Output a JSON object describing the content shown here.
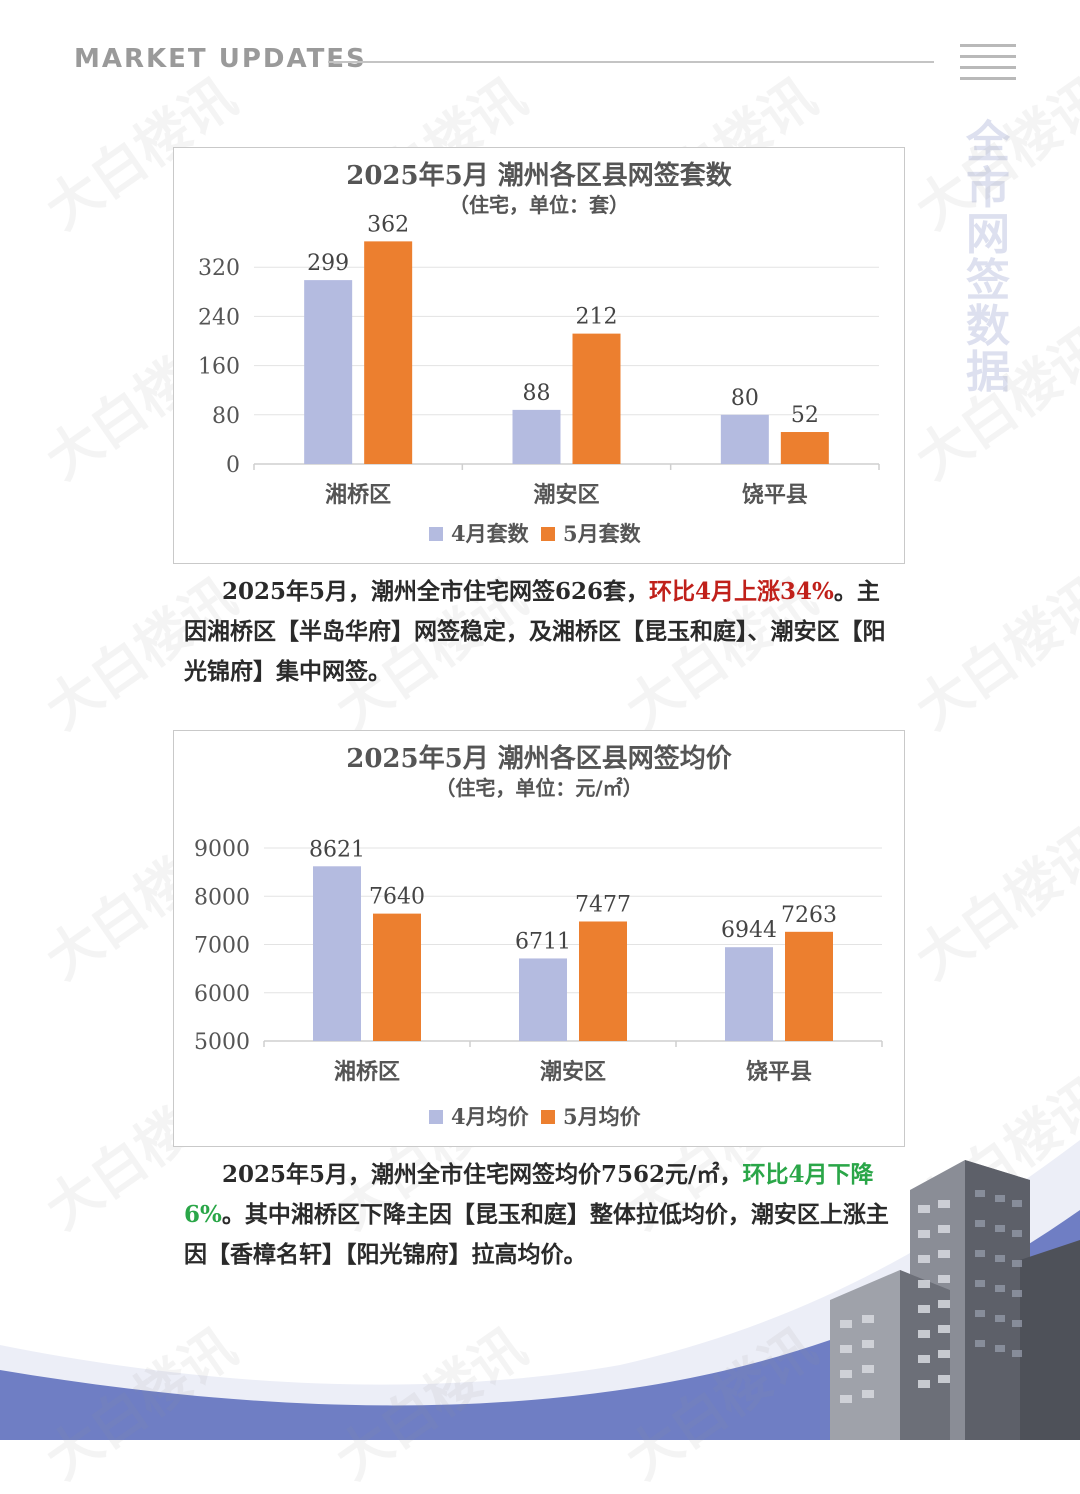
{
  "header": {
    "title": "MARKET UPDATES",
    "side_title": "全市网签数据"
  },
  "watermark": "大白楼讯",
  "colors": {
    "april": "#b4bbe0",
    "may": "#ec7f2f",
    "up": "#c0201a",
    "down": "#2aa648",
    "wave": "#6f7ec4"
  },
  "icons": {
    "menu": "hamburger-menu-icon"
  },
  "chart_data": [
    {
      "type": "bar",
      "title": "2025年5月 潮州各区县网签套数",
      "subtitle": "（住宅，单位：套）",
      "categories": [
        "湘桥区",
        "潮安区",
        "饶平县"
      ],
      "series": [
        {
          "name": "4月套数",
          "values": [
            299,
            88,
            80
          ]
        },
        {
          "name": "5月套数",
          "values": [
            362,
            212,
            52
          ]
        }
      ],
      "ylim": [
        0,
        400
      ],
      "yticks": [
        0,
        80,
        160,
        240,
        320
      ],
      "grid": true,
      "legend": "bottom"
    },
    {
      "type": "bar",
      "title": "2025年5月 潮州各区县网签均价",
      "subtitle": "（住宅，单位：元/㎡）",
      "categories": [
        "湘桥区",
        "潮安区",
        "饶平县"
      ],
      "series": [
        {
          "name": "4月均价",
          "values": [
            8621,
            6711,
            6944
          ]
        },
        {
          "name": "5月均价",
          "values": [
            7640,
            7477,
            7263
          ]
        }
      ],
      "ylim": [
        5000,
        9000
      ],
      "yticks": [
        5000,
        6000,
        7000,
        8000,
        9000
      ],
      "grid": true,
      "legend": "bottom"
    }
  ],
  "paragraphs": [
    {
      "lead": "2025年5月，潮州全市住宅网签626套，",
      "highlight": "环比4月上涨34%",
      "rest": "。主因湘桥区【半岛华府】网签稳定，及湘桥区【昆玉和庭】、潮安区【阳光锦府】集中网签。"
    },
    {
      "lead": "2025年5月，潮州全市住宅网签均价7562元/㎡，",
      "highlight": "环比4月下降6%",
      "rest": "。其中湘桥区下降主因【昆玉和庭】整体拉低均价，潮安区上涨主因【香樟名轩】【阳光锦府】拉高均价。"
    }
  ]
}
